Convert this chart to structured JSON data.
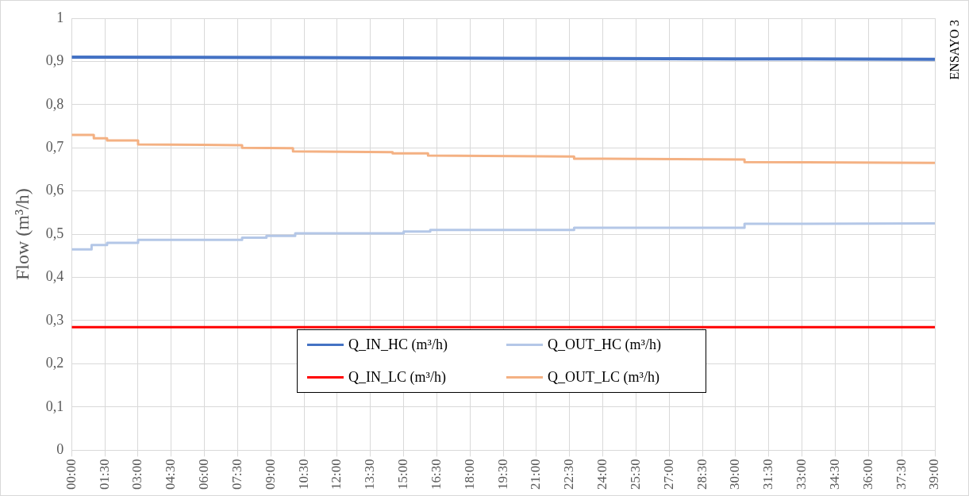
{
  "chart_data": {
    "type": "line",
    "ylabel": "Flow (m³/h)",
    "annotations": [
      "ENSAYO 3"
    ],
    "xlim": [
      0,
      39
    ],
    "xticks": [
      {
        "value": 0,
        "label": "00:00"
      },
      {
        "value": 1.5,
        "label": "01:30"
      },
      {
        "value": 3,
        "label": "03:00"
      },
      {
        "value": 4.5,
        "label": "04:30"
      },
      {
        "value": 6,
        "label": "06:00"
      },
      {
        "value": 7.5,
        "label": "07:30"
      },
      {
        "value": 9,
        "label": "09:00"
      },
      {
        "value": 10.5,
        "label": "10:30"
      },
      {
        "value": 12,
        "label": "12:00"
      },
      {
        "value": 13.5,
        "label": "13:30"
      },
      {
        "value": 15,
        "label": "15:00"
      },
      {
        "value": 16.5,
        "label": "16:30"
      },
      {
        "value": 18,
        "label": "18:00"
      },
      {
        "value": 19.5,
        "label": "19:30"
      },
      {
        "value": 21,
        "label": "21:00"
      },
      {
        "value": 22.5,
        "label": "22:30"
      },
      {
        "value": 24,
        "label": "24:00"
      },
      {
        "value": 25.5,
        "label": "25:30"
      },
      {
        "value": 27,
        "label": "27:00"
      },
      {
        "value": 28.5,
        "label": "28:30"
      },
      {
        "value": 30,
        "label": "30:00"
      },
      {
        "value": 31.5,
        "label": "31:30"
      },
      {
        "value": 33,
        "label": "33:00"
      },
      {
        "value": 34.5,
        "label": "34:30"
      },
      {
        "value": 36,
        "label": "36:00"
      },
      {
        "value": 37.5,
        "label": "37:30"
      },
      {
        "value": 39,
        "label": "39:00"
      }
    ],
    "ylim": [
      0,
      1
    ],
    "yticks": [
      0,
      {
        "value": 0.1,
        "label": "0,1"
      },
      {
        "value": 0.2,
        "label": "0,2"
      },
      {
        "value": 0.3,
        "label": "0,3"
      },
      {
        "value": 0.4,
        "label": "0,4"
      },
      {
        "value": 0.5,
        "label": "0,5"
      },
      {
        "value": 0.6,
        "label": "0,6"
      },
      {
        "value": 0.7,
        "label": "0,7"
      },
      {
        "value": 0.8,
        "label": "0,8"
      },
      {
        "value": 0.9,
        "label": "0,9"
      },
      1
    ],
    "grid": true,
    "legend": "bottom",
    "marker": "none",
    "line_style": "solid",
    "series": [
      {
        "name": "Q_IN_HC (m³/h)",
        "color": "#4472c4",
        "x": [
          0,
          10,
          20,
          30,
          39
        ],
        "values": [
          0.91,
          0.909,
          0.907,
          0.906,
          0.905
        ]
      },
      {
        "name": "Q_OUT_HC (m³/h)",
        "color": "#b4c7e7",
        "x": [
          0,
          0.9,
          0.9,
          1.6,
          1.6,
          3,
          3,
          7.7,
          7.7,
          8.8,
          8.8,
          10.1,
          10.1,
          15,
          15,
          16.2,
          16.2,
          22.7,
          22.7,
          30.4,
          30.4,
          39
        ],
        "values": [
          0.465,
          0.465,
          0.475,
          0.475,
          0.48,
          0.48,
          0.487,
          0.487,
          0.492,
          0.492,
          0.496,
          0.496,
          0.502,
          0.502,
          0.506,
          0.506,
          0.51,
          0.51,
          0.515,
          0.515,
          0.524,
          0.525
        ]
      },
      {
        "name": "Q_IN_LC (m³/h)",
        "color": "#ff0000",
        "x": [
          0,
          39
        ],
        "values": [
          0.285,
          0.285
        ]
      },
      {
        "name": "Q_OUT_LC (m³/h)",
        "color": "#f4b183",
        "x": [
          0,
          1,
          1,
          1.6,
          1.6,
          3,
          3,
          7.7,
          7.7,
          10,
          10,
          14.5,
          14.5,
          16.1,
          16.1,
          22.7,
          22.7,
          30.4,
          30.4,
          39
        ],
        "values": [
          0.73,
          0.73,
          0.722,
          0.722,
          0.717,
          0.717,
          0.708,
          0.706,
          0.7,
          0.699,
          0.692,
          0.69,
          0.687,
          0.687,
          0.682,
          0.68,
          0.675,
          0.673,
          0.667,
          0.665
        ]
      }
    ]
  }
}
